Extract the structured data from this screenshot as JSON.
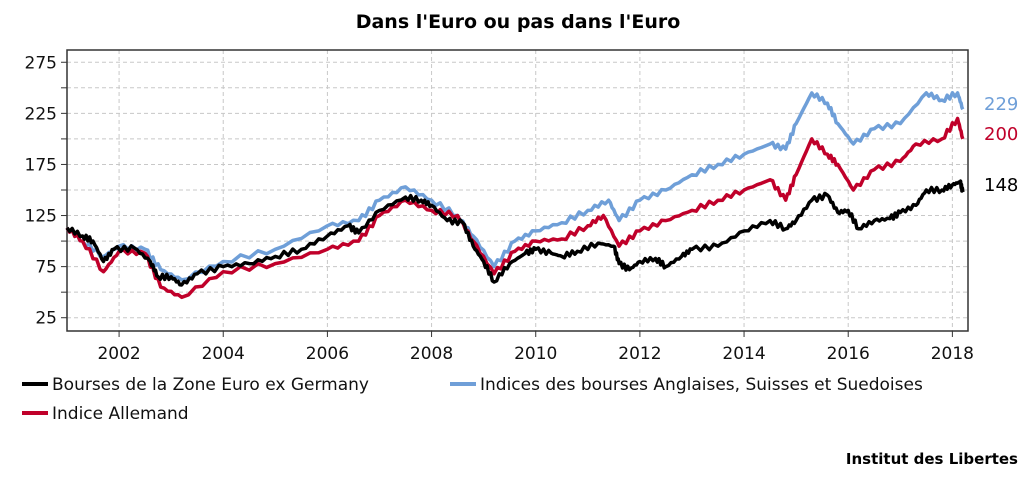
{
  "chart_data": {
    "type": "line",
    "title": "Dans l'Euro ou pas dans l'Euro",
    "xlabel": "",
    "ylabel": "",
    "xlim": [
      2001.0,
      2018.3
    ],
    "ylim": [
      12,
      287
    ],
    "xticks": [
      "2002",
      "2004",
      "2006",
      "2008",
      "2010",
      "2012",
      "2014",
      "2016",
      "2018"
    ],
    "yticks": [
      "25",
      "75",
      "125",
      "175",
      "225",
      "275"
    ],
    "grid": true,
    "legend_placement": "bottom",
    "series": [
      {
        "name": "Bourses de la Zone Euro ex Germany",
        "color": "#000000",
        "end_label": "148",
        "x": [
          2001.0,
          2001.3,
          2001.5,
          2001.7,
          2001.9,
          2002.3,
          2002.6,
          2002.75,
          2003.0,
          2003.2,
          2003.5,
          2004.0,
          2004.5,
          2005.0,
          2005.5,
          2006.0,
          2006.4,
          2006.6,
          2007.0,
          2007.5,
          2007.8,
          2008.0,
          2008.3,
          2008.6,
          2008.8,
          2009.0,
          2009.2,
          2009.5,
          2009.8,
          2010.0,
          2010.3,
          2010.5,
          2010.8,
          2011.2,
          2011.5,
          2011.6,
          2011.8,
          2012.0,
          2012.3,
          2012.5,
          2012.8,
          2013.0,
          2013.5,
          2014.0,
          2014.5,
          2014.8,
          2015.0,
          2015.3,
          2015.6,
          2015.8,
          2016.0,
          2016.2,
          2016.5,
          2016.8,
          2017.0,
          2017.3,
          2017.5,
          2017.8,
          2018.0,
          2018.15,
          2018.2
        ],
        "values": [
          113,
          105,
          100,
          80,
          92,
          93,
          80,
          65,
          65,
          57,
          68,
          75,
          78,
          85,
          92,
          105,
          115,
          108,
          130,
          143,
          140,
          135,
          120,
          118,
          95,
          80,
          60,
          78,
          88,
          92,
          88,
          85,
          90,
          98,
          95,
          78,
          72,
          80,
          83,
          75,
          85,
          92,
          95,
          110,
          120,
          112,
          120,
          140,
          145,
          128,
          130,
          112,
          120,
          122,
          128,
          135,
          150,
          150,
          155,
          158,
          148
        ]
      },
      {
        "name": "Indices des bourses Anglaises, Suisses et Suedoises",
        "color": "#6f9fd8",
        "end_label": "229",
        "x": [
          2001.0,
          2001.3,
          2001.7,
          2002.0,
          2002.5,
          2002.8,
          2003.2,
          2004.0,
          2005.0,
          2006.0,
          2006.6,
          2007.0,
          2007.5,
          2008.0,
          2008.5,
          2008.8,
          2009.2,
          2009.6,
          2010.0,
          2010.5,
          2011.0,
          2011.4,
          2011.6,
          2012.0,
          2012.5,
          2013.0,
          2013.5,
          2014.0,
          2014.5,
          2014.8,
          2015.0,
          2015.3,
          2015.6,
          2015.8,
          2016.1,
          2016.5,
          2017.0,
          2017.5,
          2017.8,
          2018.1,
          2018.2
        ],
        "values": [
          113,
          100,
          85,
          95,
          92,
          72,
          62,
          80,
          92,
          115,
          120,
          140,
          153,
          140,
          125,
          105,
          75,
          100,
          110,
          118,
          130,
          140,
          120,
          140,
          150,
          165,
          175,
          185,
          195,
          190,
          215,
          245,
          235,
          215,
          195,
          210,
          215,
          245,
          238,
          245,
          229
        ]
      },
      {
        "name": "Indice Allemand",
        "color": "#c0002a",
        "end_label": "200",
        "x": [
          2001.0,
          2001.3,
          2001.7,
          2002.0,
          2002.5,
          2002.8,
          2003.2,
          2004.0,
          2005.0,
          2006.0,
          2006.6,
          2007.0,
          2007.5,
          2008.0,
          2008.5,
          2008.8,
          2009.2,
          2009.6,
          2010.0,
          2010.5,
          2011.0,
          2011.3,
          2011.6,
          2012.0,
          2012.5,
          2013.0,
          2013.5,
          2014.0,
          2014.5,
          2014.8,
          2015.0,
          2015.3,
          2015.6,
          2015.8,
          2016.1,
          2016.5,
          2017.0,
          2017.3,
          2017.8,
          2018.1,
          2018.2
        ],
        "values": [
          113,
          100,
          70,
          90,
          88,
          55,
          45,
          70,
          78,
          92,
          100,
          125,
          140,
          130,
          125,
          100,
          68,
          90,
          100,
          102,
          115,
          125,
          95,
          110,
          120,
          130,
          140,
          150,
          160,
          140,
          165,
          200,
          185,
          175,
          150,
          170,
          178,
          195,
          200,
          220,
          200
        ]
      }
    ]
  },
  "source": "Institut des Libertes"
}
